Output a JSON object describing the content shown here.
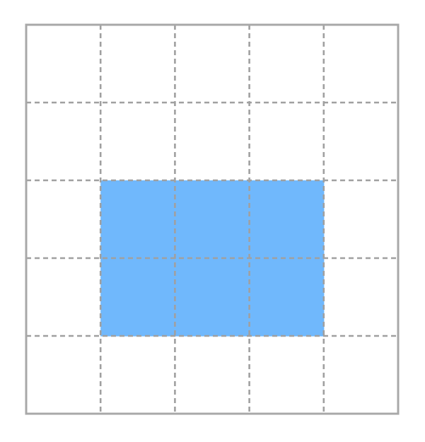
{
  "grid": {
    "rows": 5,
    "columns": 5,
    "shaded_region": {
      "row_start": 3,
      "row_end": 4,
      "column_start": 2,
      "column_end": 4,
      "cell_count": 6
    },
    "colors": {
      "background": "#ffffff",
      "shaded_fill": "#70b8fc",
      "outer_border": "#a8a8a8",
      "dashed_lines": "#a0a0a0"
    }
  }
}
